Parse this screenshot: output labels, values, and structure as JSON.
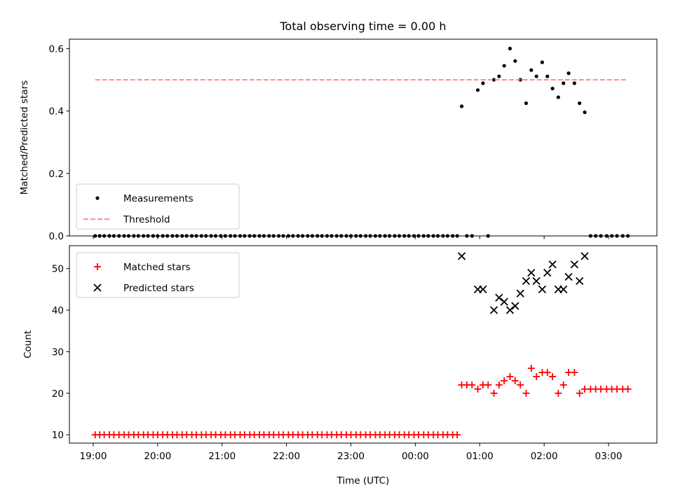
{
  "chart_data": [
    {
      "type": "scatter",
      "title": "Total observing time = 0.00 h",
      "xlabel": "",
      "ylabel": "Matched/Predicted stars",
      "ylim": [
        0,
        0.63
      ],
      "yticks": [
        0.0,
        0.2,
        0.4,
        0.6
      ],
      "ytick_labels": [
        "0.0",
        "0.2",
        "0.4",
        "0.6"
      ],
      "xlim": [
        18.63,
        27.75
      ],
      "xticks": [
        19,
        20,
        21,
        22,
        23,
        24,
        25,
        26,
        27
      ],
      "xtick_labels": [],
      "legend_position": "lower-left",
      "series": [
        {
          "name": "Measurements",
          "style": "dot",
          "color": "#000000",
          "x": [
            19.03,
            19.1,
            19.17,
            19.25,
            19.32,
            19.4,
            19.48,
            19.55,
            19.63,
            19.7,
            19.78,
            19.85,
            19.93,
            20.0,
            20.08,
            20.15,
            20.23,
            20.3,
            20.38,
            20.45,
            20.53,
            20.6,
            20.68,
            20.75,
            20.83,
            20.9,
            20.98,
            21.05,
            21.13,
            21.2,
            21.28,
            21.35,
            21.43,
            21.5,
            21.58,
            21.65,
            21.73,
            21.8,
            21.88,
            21.95,
            22.03,
            22.1,
            22.18,
            22.25,
            22.33,
            22.4,
            22.48,
            22.55,
            22.63,
            22.7,
            22.78,
            22.85,
            22.93,
            23.0,
            23.08,
            23.15,
            23.23,
            23.3,
            23.38,
            23.45,
            23.53,
            23.6,
            23.68,
            23.75,
            23.83,
            23.9,
            23.98,
            24.05,
            24.13,
            24.2,
            24.28,
            24.35,
            24.43,
            24.5,
            24.58,
            24.65,
            24.72,
            24.8,
            24.88,
            24.97,
            25.05,
            25.13,
            25.22,
            25.3,
            25.38,
            25.47,
            25.55,
            25.63,
            25.72,
            25.8,
            25.88,
            25.97,
            26.05,
            26.13,
            26.22,
            26.3,
            26.38,
            26.47,
            26.55,
            26.63,
            26.72,
            26.8,
            26.88,
            26.97,
            27.05,
            27.13,
            27.22,
            27.3
          ],
          "y": [
            0,
            0,
            0,
            0,
            0,
            0,
            0,
            0,
            0,
            0,
            0,
            0,
            0,
            0,
            0,
            0,
            0,
            0,
            0,
            0,
            0,
            0,
            0,
            0,
            0,
            0,
            0,
            0,
            0,
            0,
            0,
            0,
            0,
            0,
            0,
            0,
            0,
            0,
            0,
            0,
            0,
            0,
            0,
            0,
            0,
            0,
            0,
            0,
            0,
            0,
            0,
            0,
            0,
            0,
            0,
            0,
            0,
            0,
            0,
            0,
            0,
            0,
            0,
            0,
            0,
            0,
            0,
            0,
            0,
            0,
            0,
            0,
            0,
            0,
            0,
            0,
            0.415,
            0,
            0,
            0.467,
            0.489,
            0,
            0.5,
            0.511,
            0.545,
            0.6,
            0.56,
            0.5,
            0.425,
            0.531,
            0.511,
            0.556,
            0.511,
            0.472,
            0.444,
            0.489,
            0.521,
            0.489,
            0.425,
            0.396,
            0,
            0,
            0,
            0,
            0,
            0,
            0,
            0
          ]
        },
        {
          "name": "Threshold",
          "style": "dashed-line",
          "color": "#ff7f7f",
          "x": [
            19.03,
            27.3
          ],
          "y": [
            0.5,
            0.5
          ]
        }
      ]
    },
    {
      "type": "scatter",
      "title": "",
      "xlabel": "Time (UTC)",
      "ylabel": "Count",
      "ylim": [
        8,
        55.5
      ],
      "yticks": [
        10,
        20,
        30,
        40,
        50
      ],
      "ytick_labels": [
        "10",
        "20",
        "30",
        "40",
        "50"
      ],
      "xlim": [
        18.63,
        27.75
      ],
      "xticks": [
        19,
        20,
        21,
        22,
        23,
        24,
        25,
        26,
        27
      ],
      "xtick_labels": [
        "19:00",
        "20:00",
        "21:00",
        "22:00",
        "23:00",
        "00:00",
        "01:00",
        "02:00",
        "03:00"
      ],
      "legend_position": "upper-left",
      "series": [
        {
          "name": "Matched stars",
          "style": "plus",
          "color": "#ff0000",
          "x": [
            19.03,
            19.1,
            19.17,
            19.25,
            19.32,
            19.4,
            19.48,
            19.55,
            19.63,
            19.7,
            19.78,
            19.85,
            19.93,
            20.0,
            20.08,
            20.15,
            20.23,
            20.3,
            20.38,
            20.45,
            20.53,
            20.6,
            20.68,
            20.75,
            20.83,
            20.9,
            20.98,
            21.05,
            21.13,
            21.2,
            21.28,
            21.35,
            21.43,
            21.5,
            21.58,
            21.65,
            21.73,
            21.8,
            21.88,
            21.95,
            22.03,
            22.1,
            22.18,
            22.25,
            22.33,
            22.4,
            22.48,
            22.55,
            22.63,
            22.7,
            22.78,
            22.85,
            22.93,
            23.0,
            23.08,
            23.15,
            23.23,
            23.3,
            23.38,
            23.45,
            23.53,
            23.6,
            23.68,
            23.75,
            23.83,
            23.9,
            23.98,
            24.05,
            24.13,
            24.2,
            24.28,
            24.35,
            24.43,
            24.5,
            24.58,
            24.65,
            24.72,
            24.8,
            24.88,
            24.97,
            25.05,
            25.13,
            25.22,
            25.3,
            25.38,
            25.47,
            25.55,
            25.63,
            25.72,
            25.8,
            25.88,
            25.97,
            26.05,
            26.13,
            26.22,
            26.3,
            26.38,
            26.47,
            26.55,
            26.63,
            26.72,
            26.8,
            26.88,
            26.97,
            27.05,
            27.13,
            27.22,
            27.3
          ],
          "y": [
            10,
            10,
            10,
            10,
            10,
            10,
            10,
            10,
            10,
            10,
            10,
            10,
            10,
            10,
            10,
            10,
            10,
            10,
            10,
            10,
            10,
            10,
            10,
            10,
            10,
            10,
            10,
            10,
            10,
            10,
            10,
            10,
            10,
            10,
            10,
            10,
            10,
            10,
            10,
            10,
            10,
            10,
            10,
            10,
            10,
            10,
            10,
            10,
            10,
            10,
            10,
            10,
            10,
            10,
            10,
            10,
            10,
            10,
            10,
            10,
            10,
            10,
            10,
            10,
            10,
            10,
            10,
            10,
            10,
            10,
            10,
            10,
            10,
            10,
            10,
            10,
            22,
            22,
            22,
            21,
            22,
            22,
            20,
            22,
            23,
            24,
            23,
            22,
            20,
            26,
            24,
            25,
            25,
            24,
            20,
            22,
            25,
            25,
            20,
            21,
            21,
            21,
            21,
            21,
            21,
            21,
            21,
            21
          ]
        },
        {
          "name": "Predicted stars",
          "style": "cross",
          "color": "#000000",
          "x": [
            24.72,
            24.97,
            25.05,
            25.22,
            25.3,
            25.38,
            25.47,
            25.55,
            25.63,
            25.72,
            25.8,
            25.88,
            25.97,
            26.05,
            26.13,
            26.22,
            26.3,
            26.38,
            26.47,
            26.55,
            26.63
          ],
          "y": [
            53,
            45,
            45,
            40,
            43,
            42,
            40,
            41,
            44,
            47,
            49,
            47,
            45,
            49,
            51,
            45,
            45,
            48,
            51,
            47,
            53
          ]
        }
      ]
    }
  ]
}
